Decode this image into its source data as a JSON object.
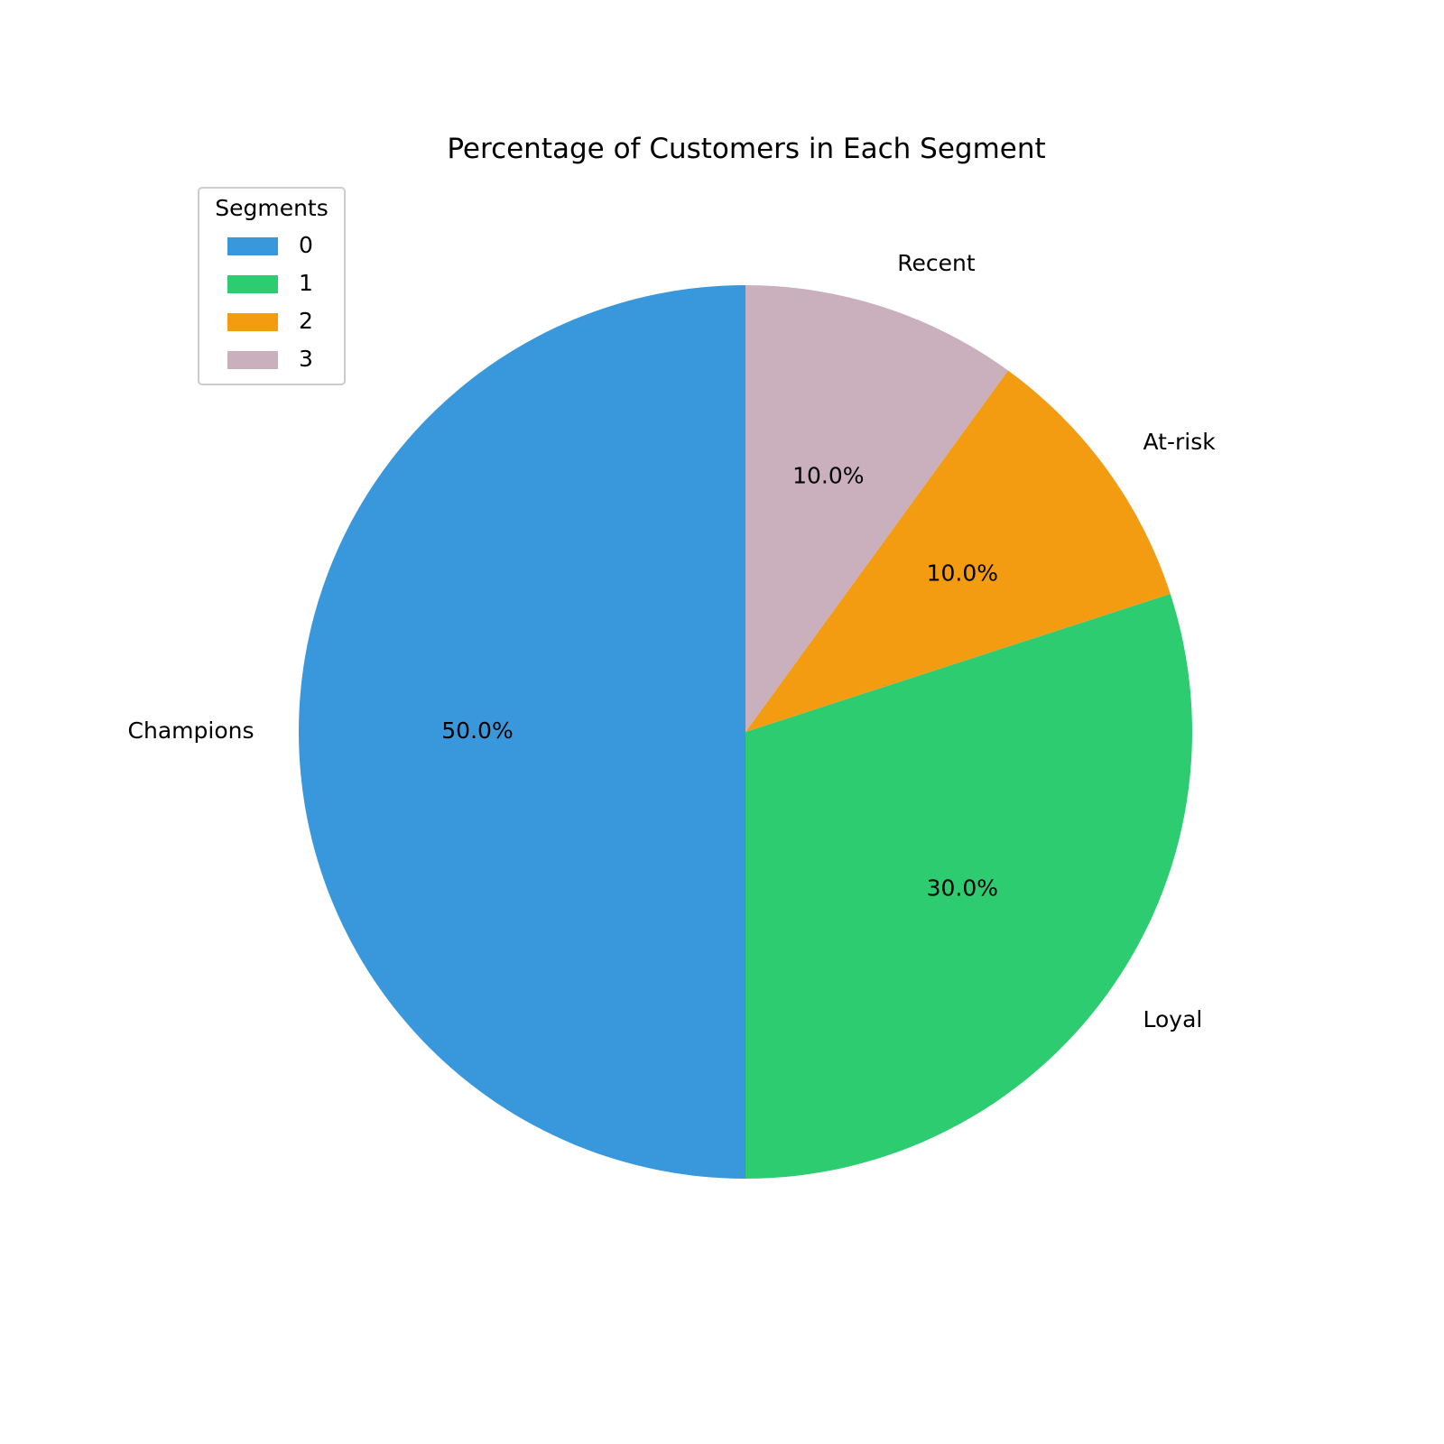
{
  "chart_data": {
    "type": "pie",
    "title": "Percentage of Customers in Each Segment",
    "categories": [
      "Champions",
      "Loyal",
      "At-risk",
      "Recent"
    ],
    "values": [
      50.0,
      30.0,
      10.0,
      10.0
    ],
    "percent_labels": [
      "50.0%",
      "30.0%",
      "10.0%",
      "10.0%"
    ],
    "colors": [
      "#3898db",
      "#2ecc71",
      "#f39c12",
      "#c9b0bc"
    ],
    "start_angle_deg": 90,
    "direction": "counterclockwise",
    "legend": {
      "title": "Segments",
      "placement": "upper-left",
      "entries": [
        "0",
        "1",
        "2",
        "3"
      ]
    }
  }
}
